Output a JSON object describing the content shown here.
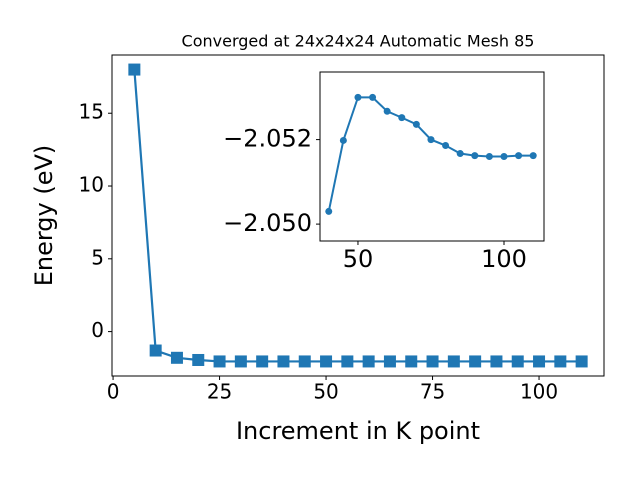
{
  "chart_data": [
    {
      "type": "line",
      "title": "Converged at 24x24x24 Automatic Mesh 85",
      "xlabel": "Increment in K point",
      "ylabel": "Energy (eV)",
      "x": [
        5,
        10,
        15,
        20,
        25,
        30,
        35,
        40,
        45,
        50,
        55,
        60,
        65,
        70,
        75,
        80,
        85,
        90,
        95,
        100,
        105,
        110
      ],
      "series": [
        {
          "color": "#1f77b4",
          "marker": "square",
          "values": [
            18,
            -1.3,
            -1.8,
            -1.95,
            -2.05,
            -2.05,
            -2.05,
            -2.05,
            -2.05,
            -2.05,
            -2.05,
            -2.05,
            -2.05,
            -2.05,
            -2.05,
            -2.05,
            -2.05,
            -2.05,
            -2.05,
            -2.05,
            -2.05,
            -2.05
          ]
        }
      ],
      "xlim": [
        -0.25,
        115.25
      ],
      "xticks": [
        0,
        25,
        50,
        75,
        100
      ],
      "ylim": [
        -3.05,
        19.0
      ],
      "yticks": [
        0,
        5,
        10,
        15
      ]
    },
    {
      "type": "line",
      "x": [
        40,
        45,
        50,
        55,
        60,
        65,
        70,
        75,
        80,
        85,
        90,
        95,
        100,
        105,
        110
      ],
      "series": [
        {
          "color": "#1f77b4",
          "marker": "circle",
          "values": [
            -2.0503,
            -2.05198,
            -2.053,
            -2.053,
            -2.05267,
            -2.05252,
            -2.05236,
            -2.052,
            -2.05186,
            -2.05167,
            -2.05162,
            -2.0516,
            -2.0516,
            -2.05162,
            -2.05162
          ]
        }
      ],
      "xlim": [
        37,
        113.7
      ],
      "xticks": [
        50,
        100
      ],
      "ylim": [
        -2.0496,
        -2.0536
      ],
      "yticks": [
        {
          "value": -2.05,
          "label": "−2.050"
        },
        {
          "value": -2.052,
          "label": "−2.052"
        }
      ]
    }
  ]
}
